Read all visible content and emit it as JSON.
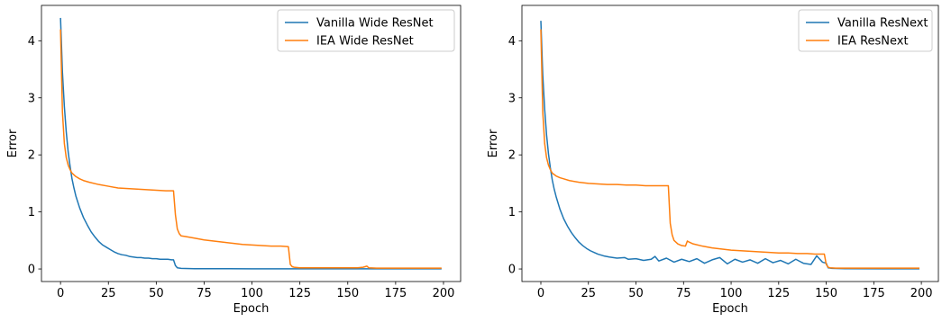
{
  "chart_data": [
    {
      "type": "line",
      "xlabel": "Epoch",
      "ylabel": "Error",
      "xlim": [
        -9.95,
        208.95
      ],
      "ylim": [
        -0.22,
        4.62
      ],
      "xticks": [
        0,
        25,
        50,
        75,
        100,
        125,
        150,
        175,
        200
      ],
      "yticks": [
        0,
        1,
        2,
        3,
        4
      ],
      "grid": false,
      "legend": "top-right",
      "series": [
        {
          "name": "Vanilla Wide ResNet",
          "color": "#1f77b4",
          "points": [
            [
              0,
              4.4
            ],
            [
              1,
              3.45
            ],
            [
              2,
              2.85
            ],
            [
              3,
              2.4
            ],
            [
              4,
              2.05
            ],
            [
              5,
              1.8
            ],
            [
              6,
              1.58
            ],
            [
              7,
              1.42
            ],
            [
              8,
              1.28
            ],
            [
              10,
              1.07
            ],
            [
              12,
              0.9
            ],
            [
              14,
              0.77
            ],
            [
              16,
              0.65
            ],
            [
              18,
              0.56
            ],
            [
              20,
              0.48
            ],
            [
              22,
              0.42
            ],
            [
              24,
              0.38
            ],
            [
              26,
              0.34
            ],
            [
              28,
              0.3
            ],
            [
              30,
              0.27
            ],
            [
              32,
              0.25
            ],
            [
              34,
              0.24
            ],
            [
              36,
              0.22
            ],
            [
              38,
              0.21
            ],
            [
              40,
              0.2
            ],
            [
              42,
              0.2
            ],
            [
              44,
              0.19
            ],
            [
              46,
              0.19
            ],
            [
              48,
              0.18
            ],
            [
              50,
              0.18
            ],
            [
              52,
              0.17
            ],
            [
              54,
              0.17
            ],
            [
              56,
              0.17
            ],
            [
              58,
              0.16
            ],
            [
              59,
              0.16
            ],
            [
              60,
              0.06
            ],
            [
              61,
              0.02
            ],
            [
              63,
              0.01
            ],
            [
              70,
              0.005
            ],
            [
              100,
              0.003
            ],
            [
              150,
              0.002
            ],
            [
              199,
              0.002
            ]
          ]
        },
        {
          "name": "IEA Wide ResNet",
          "color": "#ff7f0e",
          "points": [
            [
              0,
              4.2
            ],
            [
              1,
              2.75
            ],
            [
              2,
              2.2
            ],
            [
              3,
              1.95
            ],
            [
              4,
              1.82
            ],
            [
              5,
              1.74
            ],
            [
              6,
              1.68
            ],
            [
              8,
              1.62
            ],
            [
              10,
              1.58
            ],
            [
              12,
              1.55
            ],
            [
              15,
              1.52
            ],
            [
              20,
              1.48
            ],
            [
              25,
              1.45
            ],
            [
              30,
              1.42
            ],
            [
              35,
              1.41
            ],
            [
              40,
              1.4
            ],
            [
              45,
              1.39
            ],
            [
              50,
              1.38
            ],
            [
              55,
              1.37
            ],
            [
              59,
              1.37
            ],
            [
              60,
              0.95
            ],
            [
              61,
              0.7
            ],
            [
              62,
              0.62
            ],
            [
              63,
              0.58
            ],
            [
              65,
              0.57
            ],
            [
              70,
              0.54
            ],
            [
              75,
              0.51
            ],
            [
              80,
              0.49
            ],
            [
              85,
              0.47
            ],
            [
              90,
              0.45
            ],
            [
              95,
              0.43
            ],
            [
              100,
              0.42
            ],
            [
              105,
              0.41
            ],
            [
              110,
              0.4
            ],
            [
              115,
              0.4
            ],
            [
              119,
              0.39
            ],
            [
              120,
              0.08
            ],
            [
              121,
              0.04
            ],
            [
              122,
              0.03
            ],
            [
              125,
              0.02
            ],
            [
              130,
              0.02
            ],
            [
              140,
              0.02
            ],
            [
              150,
              0.02
            ],
            [
              155,
              0.02
            ],
            [
              158,
              0.03
            ],
            [
              160,
              0.05
            ],
            [
              161,
              0.02
            ],
            [
              165,
              0.015
            ],
            [
              180,
              0.015
            ],
            [
              199,
              0.015
            ]
          ]
        }
      ]
    },
    {
      "type": "line",
      "xlabel": "Epoch",
      "ylabel": "Error",
      "xlim": [
        -9.95,
        208.95
      ],
      "ylim": [
        -0.22,
        4.62
      ],
      "xticks": [
        0,
        25,
        50,
        75,
        100,
        125,
        150,
        175,
        200
      ],
      "yticks": [
        0,
        1,
        2,
        3,
        4
      ],
      "grid": false,
      "legend": "top-right",
      "series": [
        {
          "name": "Vanilla ResNext",
          "color": "#1f77b4",
          "points": [
            [
              0,
              4.35
            ],
            [
              1,
              3.4
            ],
            [
              2,
              2.8
            ],
            [
              3,
              2.35
            ],
            [
              4,
              2.02
            ],
            [
              5,
              1.77
            ],
            [
              6,
              1.56
            ],
            [
              7,
              1.4
            ],
            [
              8,
              1.27
            ],
            [
              10,
              1.05
            ],
            [
              12,
              0.88
            ],
            [
              14,
              0.75
            ],
            [
              16,
              0.64
            ],
            [
              18,
              0.55
            ],
            [
              20,
              0.47
            ],
            [
              22,
              0.41
            ],
            [
              24,
              0.36
            ],
            [
              26,
              0.32
            ],
            [
              28,
              0.29
            ],
            [
              30,
              0.26
            ],
            [
              33,
              0.23
            ],
            [
              36,
              0.21
            ],
            [
              40,
              0.19
            ],
            [
              44,
              0.2
            ],
            [
              46,
              0.17
            ],
            [
              50,
              0.18
            ],
            [
              54,
              0.15
            ],
            [
              58,
              0.17
            ],
            [
              60,
              0.22
            ],
            [
              62,
              0.14
            ],
            [
              66,
              0.19
            ],
            [
              70,
              0.12
            ],
            [
              74,
              0.17
            ],
            [
              78,
              0.13
            ],
            [
              82,
              0.18
            ],
            [
              86,
              0.1
            ],
            [
              90,
              0.16
            ],
            [
              94,
              0.2
            ],
            [
              98,
              0.09
            ],
            [
              102,
              0.17
            ],
            [
              106,
              0.12
            ],
            [
              110,
              0.16
            ],
            [
              114,
              0.1
            ],
            [
              118,
              0.18
            ],
            [
              122,
              0.11
            ],
            [
              126,
              0.15
            ],
            [
              130,
              0.09
            ],
            [
              134,
              0.17
            ],
            [
              138,
              0.1
            ],
            [
              142,
              0.08
            ],
            [
              145,
              0.23
            ],
            [
              148,
              0.12
            ],
            [
              150,
              0.1
            ],
            [
              151,
              0.02
            ],
            [
              153,
              0.01
            ],
            [
              160,
              0.005
            ],
            [
              180,
              0.003
            ],
            [
              199,
              0.003
            ]
          ]
        },
        {
          "name": "IEA ResNext",
          "color": "#ff7f0e",
          "points": [
            [
              0,
              4.2
            ],
            [
              1,
              2.75
            ],
            [
              2,
              2.2
            ],
            [
              3,
              1.95
            ],
            [
              4,
              1.82
            ],
            [
              5,
              1.74
            ],
            [
              6,
              1.68
            ],
            [
              8,
              1.63
            ],
            [
              10,
              1.6
            ],
            [
              12,
              1.58
            ],
            [
              15,
              1.55
            ],
            [
              20,
              1.52
            ],
            [
              25,
              1.5
            ],
            [
              30,
              1.49
            ],
            [
              35,
              1.48
            ],
            [
              40,
              1.48
            ],
            [
              45,
              1.47
            ],
            [
              50,
              1.47
            ],
            [
              55,
              1.46
            ],
            [
              60,
              1.46
            ],
            [
              67,
              1.46
            ],
            [
              68,
              0.8
            ],
            [
              69,
              0.6
            ],
            [
              70,
              0.5
            ],
            [
              72,
              0.44
            ],
            [
              74,
              0.41
            ],
            [
              76,
              0.4
            ],
            [
              77,
              0.49
            ],
            [
              78,
              0.47
            ],
            [
              80,
              0.44
            ],
            [
              85,
              0.4
            ],
            [
              90,
              0.37
            ],
            [
              95,
              0.35
            ],
            [
              100,
              0.33
            ],
            [
              105,
              0.32
            ],
            [
              110,
              0.31
            ],
            [
              115,
              0.3
            ],
            [
              120,
              0.29
            ],
            [
              125,
              0.28
            ],
            [
              130,
              0.28
            ],
            [
              135,
              0.27
            ],
            [
              140,
              0.27
            ],
            [
              144,
              0.26
            ],
            [
              149,
              0.26
            ],
            [
              150,
              0.08
            ],
            [
              151,
              0.03
            ],
            [
              152,
              0.02
            ],
            [
              155,
              0.015
            ],
            [
              170,
              0.015
            ],
            [
              199,
              0.015
            ]
          ]
        }
      ]
    }
  ]
}
